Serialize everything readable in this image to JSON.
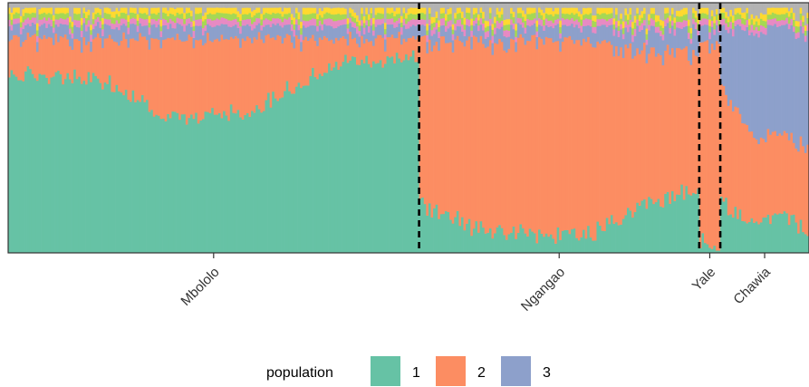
{
  "chart_data": {
    "type": "bar",
    "subtype": "stacked-admixture",
    "x_categories": [
      "Mbololo",
      "Ngangao",
      "Yale",
      "Chawia"
    ],
    "series": [
      {
        "name": "1",
        "color": "#66c2a5"
      },
      {
        "name": "2",
        "color": "#fc8d62"
      },
      {
        "name": "3",
        "color": "#8da0cb"
      },
      {
        "color": "#e78ac3"
      },
      {
        "color": "#a6d854"
      },
      {
        "color": "#ffd92f"
      },
      {
        "color": "#b3b3b3"
      }
    ],
    "groups": [
      {
        "name": "Mbololo",
        "n": 176,
        "profile": [
          [
            0.73,
            0.15,
            0.05
          ],
          [
            0.71,
            0.16,
            0.05
          ],
          [
            0.55,
            0.32,
            0.05
          ],
          [
            0.58,
            0.3,
            0.05
          ],
          [
            0.78,
            0.09,
            0.05
          ],
          [
            0.8,
            0.08,
            0.05
          ]
        ]
      },
      {
        "name": "Ngangao",
        "n": 120,
        "profile": [
          [
            0.2,
            0.66,
            0.05
          ],
          [
            0.1,
            0.76,
            0.05
          ],
          [
            0.08,
            0.78,
            0.05
          ],
          [
            0.07,
            0.78,
            0.06
          ],
          [
            0.2,
            0.62,
            0.08
          ],
          [
            0.25,
            0.55,
            0.1
          ]
        ]
      },
      {
        "name": "Yale",
        "n": 9,
        "profile": [
          [
            0.05,
            0.8,
            0.06
          ],
          [
            0.03,
            0.82,
            0.06
          ]
        ]
      },
      {
        "name": "Chawia",
        "n": 38,
        "profile": [
          [
            0.2,
            0.45,
            0.25
          ],
          [
            0.12,
            0.38,
            0.4
          ],
          [
            0.15,
            0.3,
            0.45
          ],
          [
            0.1,
            0.35,
            0.45
          ]
        ]
      }
    ],
    "ylim": [
      0,
      1
    ],
    "legend": {
      "title": "population",
      "entries": [
        "1",
        "2",
        "3"
      ],
      "position": "bottom"
    },
    "grid": false
  }
}
